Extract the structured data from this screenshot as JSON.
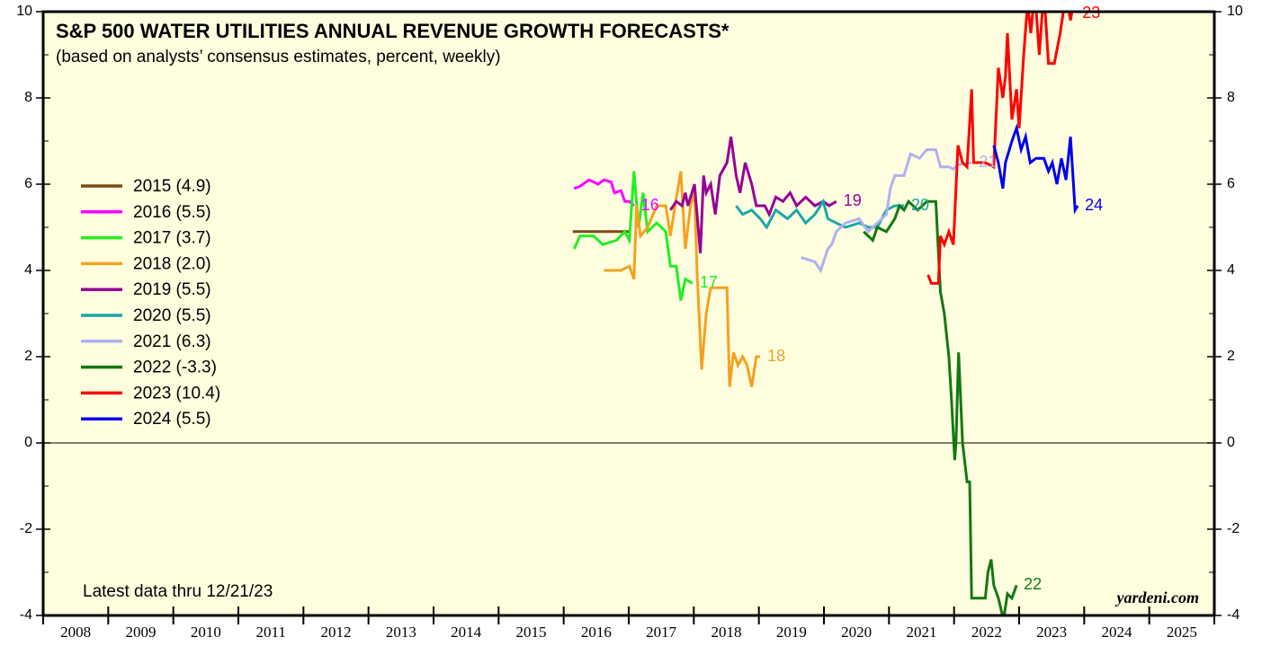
{
  "chart_data": {
    "type": "line",
    "title": "S&P 500 WATER UTILITIES ANNUAL REVENUE GROWTH FORECASTS*",
    "subtitle": "(based on analysts’ consensus estimates, percent, weekly)",
    "annotations": [
      "Latest data thru 12/21/23",
      "yardeni.com"
    ],
    "xlim": [
      2008,
      2026
    ],
    "xticks": [
      2008,
      2009,
      2010,
      2011,
      2012,
      2013,
      2014,
      2015,
      2016,
      2017,
      2018,
      2019,
      2020,
      2021,
      2022,
      2023,
      2024,
      2025,
      2026
    ],
    "xlabels": [
      2008,
      2009,
      2010,
      2011,
      2012,
      2013,
      2014,
      2015,
      2016,
      2017,
      2018,
      2019,
      2020,
      2021,
      2022,
      2023,
      2024,
      2025
    ],
    "ylim": [
      -4,
      10
    ],
    "yticks": [
      -4,
      -2,
      0,
      2,
      4,
      6,
      8,
      10
    ],
    "legend": "left",
    "series": [
      {
        "name": "2015 (4.9)",
        "color": "#7b4a12",
        "x": [
          2016.14,
          2017.01
        ],
        "values": [
          4.9,
          4.9
        ]
      },
      {
        "name": "2016 (5.5)",
        "color": "#ff00ff",
        "end_label": "16",
        "x": [
          2016.16,
          2016.25,
          2016.39,
          2016.53,
          2016.62,
          2016.73,
          2016.78,
          2016.88,
          2016.94,
          2017.01,
          2017.08
        ],
        "values": [
          5.9,
          5.95,
          6.1,
          6.0,
          6.1,
          6.05,
          5.8,
          5.85,
          5.6,
          5.6,
          5.5
        ]
      },
      {
        "name": "2017 (3.7)",
        "color": "#22ee22",
        "end_label": "17",
        "x": [
          2016.16,
          2016.25,
          2016.46,
          2016.6,
          2016.81,
          2016.94,
          2017.01,
          2017.08,
          2017.15,
          2017.22,
          2017.29,
          2017.43,
          2017.57,
          2017.64,
          2017.73,
          2017.8,
          2017.87,
          2017.98
        ],
        "values": [
          4.5,
          4.8,
          4.8,
          4.6,
          4.7,
          4.9,
          4.7,
          6.3,
          5.0,
          5.8,
          4.9,
          5.1,
          4.9,
          4.1,
          4.1,
          3.3,
          3.8,
          3.7
        ]
      },
      {
        "name": "2018 (2.0)",
        "color": "#f7a020",
        "end_label": "18",
        "x": [
          2016.62,
          2016.88,
          2017.01,
          2017.08,
          2017.12,
          2017.18,
          2017.29,
          2017.43,
          2017.57,
          2017.64,
          2017.71,
          2017.8,
          2017.87,
          2017.95,
          2018.01,
          2018.05,
          2018.12,
          2018.19,
          2018.26,
          2018.4,
          2018.51,
          2018.55,
          2018.61,
          2018.68,
          2018.75,
          2018.82,
          2018.89,
          2018.96,
          2019.02
        ],
        "values": [
          4.0,
          4.0,
          4.1,
          3.8,
          5.5,
          4.8,
          5.0,
          5.5,
          5.5,
          4.8,
          5.5,
          6.3,
          4.5,
          5.5,
          5.8,
          4.0,
          1.7,
          3.0,
          3.6,
          3.6,
          3.6,
          1.3,
          2.1,
          1.8,
          2.0,
          1.8,
          1.3,
          2.0,
          2.0
        ]
      },
      {
        "name": "2019 (5.5)",
        "color": "#960096",
        "end_label": "19",
        "x": [
          2017.64,
          2017.73,
          2017.82,
          2017.87,
          2017.91,
          2018.01,
          2018.1,
          2018.15,
          2018.19,
          2018.26,
          2018.33,
          2018.4,
          2018.51,
          2018.57,
          2018.65,
          2018.71,
          2018.79,
          2018.89,
          2018.96,
          2019.09,
          2019.16,
          2019.26,
          2019.37,
          2019.48,
          2019.58,
          2019.72,
          2019.86,
          2019.99,
          2020.08,
          2020.19
        ],
        "values": [
          5.4,
          5.6,
          5.5,
          5.8,
          5.5,
          6.0,
          4.4,
          6.2,
          5.8,
          6.0,
          5.3,
          6.2,
          6.5,
          7.1,
          6.2,
          5.8,
          6.5,
          6.0,
          5.5,
          5.5,
          5.3,
          5.7,
          5.6,
          5.8,
          5.5,
          5.7,
          5.5,
          5.6,
          5.5,
          5.6
        ]
      },
      {
        "name": "2020 (5.5)",
        "color": "#1aa8a8",
        "end_label": "20",
        "x": [
          2018.65,
          2018.75,
          2018.89,
          2019.02,
          2019.12,
          2019.26,
          2019.44,
          2019.58,
          2019.72,
          2019.86,
          2019.99,
          2020.06,
          2020.19,
          2020.33,
          2020.54,
          2020.68,
          2020.82,
          2020.96,
          2021.09,
          2021.23
        ],
        "values": [
          5.5,
          5.3,
          5.4,
          5.2,
          5.0,
          5.4,
          5.2,
          5.4,
          5.1,
          5.3,
          5.6,
          5.2,
          5.1,
          5.0,
          5.1,
          5.0,
          5.0,
          5.4,
          5.5,
          5.5
        ]
      },
      {
        "name": "2021 (6.3)",
        "color": "#b0b0f0",
        "end_label": "21",
        "x": [
          2019.65,
          2019.86,
          2019.95,
          2020.06,
          2020.12,
          2020.19,
          2020.33,
          2020.54,
          2020.68,
          2020.82,
          2020.96,
          2021.02,
          2021.09,
          2021.23,
          2021.33,
          2021.47,
          2021.58,
          2021.72,
          2021.79,
          2021.92,
          2021.99,
          2022.06,
          2022.27
        ],
        "values": [
          4.3,
          4.2,
          4.0,
          4.5,
          4.6,
          4.9,
          5.1,
          5.2,
          4.9,
          5.1,
          5.3,
          5.9,
          6.2,
          6.2,
          6.7,
          6.6,
          6.8,
          6.8,
          6.4,
          6.4,
          6.35,
          6.45,
          6.5
        ]
      },
      {
        "name": "2022 (-3.3)",
        "color": "#127812",
        "end_label": "22",
        "x": [
          2020.61,
          2020.75,
          2020.82,
          2020.96,
          2021.09,
          2021.16,
          2021.23,
          2021.3,
          2021.44,
          2021.58,
          2021.72,
          2021.79,
          2021.85,
          2021.92,
          2021.96,
          2022.01,
          2022.03,
          2022.07,
          2022.13,
          2022.2,
          2022.24,
          2022.27,
          2022.48,
          2022.52,
          2022.57,
          2022.61,
          2022.68,
          2022.76,
          2022.82,
          2022.89,
          2022.96
        ],
        "values": [
          4.9,
          4.7,
          5.0,
          4.9,
          5.2,
          5.5,
          5.4,
          5.6,
          5.4,
          5.6,
          5.6,
          3.5,
          3.0,
          2.0,
          1.0,
          -0.4,
          0.0,
          2.1,
          0.0,
          -0.9,
          -0.9,
          -3.6,
          -3.6,
          -3.0,
          -2.7,
          -3.3,
          -3.6,
          -4.1,
          -3.5,
          -3.6,
          -3.3
        ]
      },
      {
        "name": "2023 (10.4)",
        "color": "#ff0000",
        "end_label": "23",
        "x": [
          2021.6,
          2021.65,
          2021.76,
          2021.79,
          2021.85,
          2021.92,
          2021.99,
          2022.06,
          2022.13,
          2022.2,
          2022.27,
          2022.3,
          2022.48,
          2022.61,
          2022.68,
          2022.75,
          2022.79,
          2022.82,
          2022.89,
          2022.96,
          2023.0,
          2023.07,
          2023.13,
          2023.18,
          2023.24,
          2023.31,
          2023.38,
          2023.45,
          2023.54,
          2023.63,
          2023.72,
          2023.79,
          2023.86
        ],
        "values": [
          3.9,
          3.7,
          3.7,
          4.8,
          4.6,
          4.9,
          4.6,
          6.9,
          6.5,
          6.4,
          8.2,
          6.5,
          6.5,
          6.4,
          8.7,
          8.0,
          8.5,
          9.5,
          7.5,
          8.2,
          7.3,
          9.0,
          10.2,
          9.5,
          10.5,
          9.0,
          10.5,
          8.8,
          8.8,
          9.5,
          10.4,
          9.8,
          10.4
        ]
      },
      {
        "name": "2024 (5.5)",
        "color": "#0000ee",
        "end_label": "24",
        "x": [
          2022.61,
          2022.68,
          2022.75,
          2022.79,
          2022.89,
          2022.96,
          2023.03,
          2023.1,
          2023.17,
          2023.26,
          2023.38,
          2023.45,
          2023.51,
          2023.58,
          2023.65,
          2023.72,
          2023.79,
          2023.86,
          2023.9
        ],
        "values": [
          6.9,
          6.5,
          5.9,
          6.5,
          7.0,
          7.3,
          6.8,
          7.1,
          6.5,
          6.6,
          6.6,
          6.3,
          6.5,
          6.0,
          6.6,
          6.1,
          7.1,
          5.4,
          5.5
        ]
      }
    ]
  }
}
